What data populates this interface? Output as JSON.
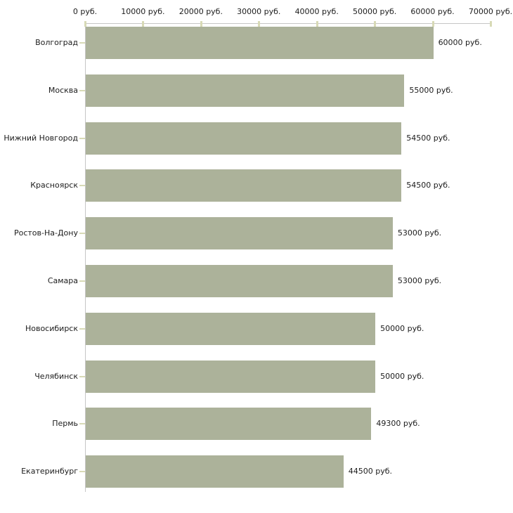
{
  "chart_data": {
    "type": "bar",
    "orientation": "horizontal",
    "title": "",
    "xlabel": "",
    "ylabel": "",
    "unit": "руб.",
    "categories": [
      "Волгоград",
      "Москва",
      "Нижний Новгород",
      "Красноярск",
      "Ростов-На-Дону",
      "Самара",
      "Новосибирск",
      "Челябинск",
      "Пермь",
      "Екатеринбург"
    ],
    "values": [
      60000,
      55000,
      54500,
      54500,
      53000,
      53000,
      50000,
      50000,
      49300,
      44500
    ],
    "value_labels": [
      "60000 руб.",
      "55000 руб.",
      "54500 руб.",
      "54500 руб.",
      "53000 руб.",
      "53000 руб.",
      "50000 руб.",
      "50000 руб.",
      "49300 руб.",
      "44500 руб."
    ],
    "x_tick_values": [
      0,
      10000,
      20000,
      30000,
      40000,
      50000,
      60000,
      70000
    ],
    "x_tick_labels": [
      "0 руб.",
      "10000 руб.",
      "20000 руб.",
      "30000 руб.",
      "40000 руб.",
      "50000 руб.",
      "60000 руб.",
      "70000 руб."
    ],
    "xlim": [
      0,
      70000
    ],
    "grid": false,
    "legend": false,
    "colors": {
      "bar": "#acb29a",
      "axis": "#c6c6c6",
      "tick": "#d8dab6",
      "text": "#1c1c1c",
      "background": "#ffffff"
    }
  }
}
